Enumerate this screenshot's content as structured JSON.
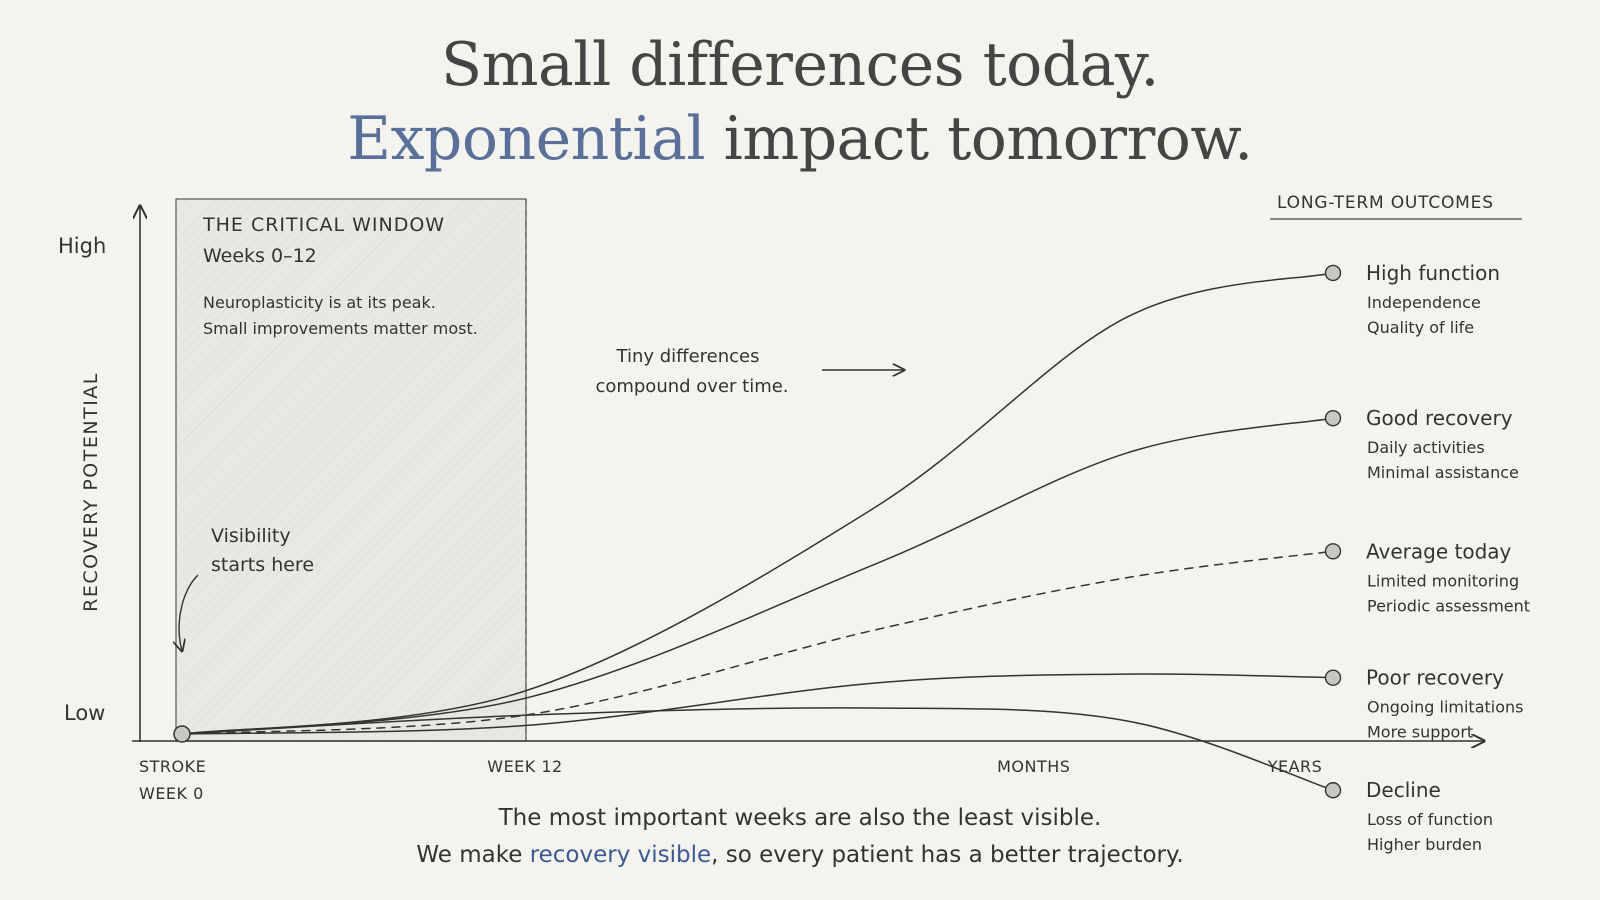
{
  "title": {
    "line1": "Small differences today.",
    "line2_accent": "Exponential",
    "line2_rest": " impact tomorrow."
  },
  "footer": {
    "line1": "The most important weeks are also the least visible.",
    "line2_pre": "We make ",
    "line2_accent": "recovery visible",
    "line2_post": ", so every patient has a better trajectory."
  },
  "colors": {
    "background": "#f5f3ee",
    "accent": "#3b5a95",
    "title_accent": "#5a6f9a",
    "ink": "#333333",
    "window_shade": "#e9e7e2"
  },
  "annotations": {
    "window_title": "THE CRITICAL WINDOW",
    "window_subtitle": "Weeks 0–12",
    "window_text": [
      "Neuroplasticity is at its peak.",
      "Small improvements matter most."
    ],
    "visibility": [
      "Visibility",
      "starts here"
    ],
    "compound": [
      "Tiny differences",
      "compound over time."
    ],
    "outcomes_header": "LONG-TERM OUTCOMES"
  },
  "chart_data": {
    "type": "line",
    "ylabel": "RECOVERY POTENTIAL",
    "yticks": [
      "High",
      "Low"
    ],
    "ylim": [
      0,
      1
    ],
    "xticks": [
      {
        "line1": "STROKE",
        "line2": "WEEK 0",
        "value": 0
      },
      {
        "line1": "WEEK 12",
        "line2": "",
        "value": 0.298
      },
      {
        "line1": "MONTHS",
        "line2": "",
        "value": 0.74
      },
      {
        "line1": "YEARS",
        "line2": "",
        "value": 0.967
      }
    ],
    "critical_window": [
      0,
      0.298
    ],
    "series": [
      {
        "name": "High function",
        "details": [
          "Independence",
          "Quality of life"
        ],
        "dashed": false,
        "points": [
          [
            0,
            0.205
          ],
          [
            0.298,
            0.276
          ],
          [
            0.6,
            0.577
          ],
          [
            0.82,
            0.893
          ],
          [
            1,
            0.967
          ]
        ]
      },
      {
        "name": "Good recovery",
        "details": [
          "Daily activities",
          "Minimal assistance"
        ],
        "dashed": false,
        "points": [
          [
            0,
            0.205
          ],
          [
            0.298,
            0.264
          ],
          [
            0.6,
            0.484
          ],
          [
            0.82,
            0.669
          ],
          [
            1,
            0.727
          ]
        ]
      },
      {
        "name": "Average today",
        "details": [
          "Limited monitoring",
          "Periodic assessment"
        ],
        "dashed": true,
        "points": [
          [
            0,
            0.205
          ],
          [
            0.298,
            0.236
          ],
          [
            0.6,
            0.376
          ],
          [
            0.82,
            0.463
          ],
          [
            1,
            0.507
          ]
        ]
      },
      {
        "name": "Poor recovery",
        "details": [
          "Ongoing limitations",
          "More support"
        ],
        "dashed": false,
        "points": [
          [
            0,
            0.205
          ],
          [
            0.298,
            0.219
          ],
          [
            0.6,
            0.289
          ],
          [
            0.82,
            0.304
          ],
          [
            1,
            0.298
          ]
        ]
      },
      {
        "name": "Decline",
        "details": [
          "Loss of function",
          "Higher burden"
        ],
        "dashed": false,
        "points": [
          [
            0,
            0.205
          ],
          [
            0.298,
            0.236
          ],
          [
            0.6,
            0.248
          ],
          [
            0.82,
            0.227
          ],
          [
            1,
            0.112
          ]
        ]
      }
    ]
  }
}
